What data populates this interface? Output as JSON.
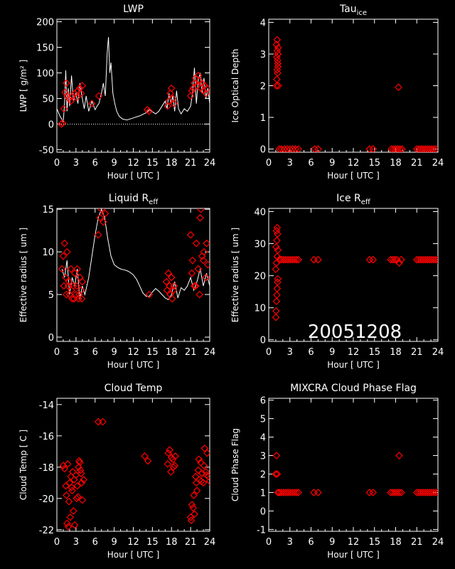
{
  "figure": {
    "date_stamp": "20051208"
  },
  "chart_data": [
    {
      "id": "lwp",
      "type": "line",
      "title": "LWP",
      "title_sub": "",
      "xlabel": "Hour [ UTC ]",
      "ylabel": "LWP [ g/m² ]",
      "xlim": [
        0,
        24
      ],
      "ylim": [
        -55,
        205
      ],
      "xticks": [
        0,
        3,
        6,
        9,
        12,
        15,
        18,
        21,
        24
      ],
      "yticks": [
        -50,
        0,
        50,
        100,
        150,
        200
      ],
      "reference_line": 0,
      "line": {
        "x": [
          0,
          0.5,
          1.0,
          1.2,
          1.4,
          1.6,
          1.8,
          2.0,
          2.3,
          2.6,
          3.0,
          3.3,
          3.6,
          4.0,
          4.3,
          4.6,
          5.0,
          5.5,
          6.0,
          6.3,
          6.6,
          7.0,
          7.3,
          7.6,
          7.9,
          8.1,
          8.3,
          8.5,
          8.8,
          9.1,
          9.4,
          9.8,
          10.3,
          11.0,
          12.0,
          13.0,
          14.0,
          14.5,
          15.0,
          15.5,
          16.0,
          16.5,
          17.0,
          17.3,
          17.6,
          17.9,
          18.2,
          18.5,
          18.8,
          19.1,
          19.5,
          20.0,
          20.5,
          21.0,
          21.3,
          21.6,
          21.9,
          22.2,
          22.5,
          22.8,
          23.1,
          23.4,
          23.7,
          24.0
        ],
        "y": [
          30,
          15,
          5,
          40,
          105,
          25,
          70,
          35,
          95,
          45,
          60,
          40,
          80,
          50,
          30,
          55,
          25,
          45,
          28,
          35,
          40,
          60,
          80,
          55,
          140,
          170,
          100,
          120,
          60,
          40,
          25,
          15,
          10,
          8,
          12,
          16,
          22,
          28,
          24,
          20,
          25,
          35,
          45,
          30,
          60,
          40,
          55,
          25,
          65,
          30,
          20,
          30,
          25,
          35,
          60,
          110,
          40,
          85,
          100,
          60,
          90,
          50,
          70,
          40
        ]
      },
      "markers": {
        "shape": "diamond",
        "x": [
          0.7,
          0.9,
          1.1,
          1.3,
          1.5,
          1.6,
          1.9,
          2.2,
          2.5,
          2.8,
          3.1,
          3.3,
          3.6,
          3.8,
          4.0,
          5.5,
          6.6,
          14.2,
          14.5,
          17.4,
          17.6,
          17.8,
          18.0,
          18.2,
          18.4,
          21.0,
          21.2,
          21.4,
          21.6,
          21.8,
          22.0,
          22.2,
          22.4,
          22.6,
          22.8,
          23.0,
          23.2,
          23.4,
          23.6
        ],
        "y": [
          0,
          2,
          30,
          62,
          80,
          55,
          50,
          45,
          55,
          60,
          52,
          65,
          70,
          60,
          75,
          40,
          55,
          28,
          25,
          35,
          45,
          60,
          70,
          50,
          40,
          55,
          65,
          70,
          80,
          90,
          75,
          95,
          85,
          70,
          80,
          65,
          75,
          60,
          70
        ]
      }
    },
    {
      "id": "tau-ice",
      "type": "scatter",
      "title": "Tau",
      "title_sub": "ice",
      "xlabel": "Hour [ UTC ]",
      "ylabel": "Ice Optical Depth",
      "xlim": [
        0,
        24
      ],
      "ylim": [
        -0.1,
        4.1
      ],
      "xticks": [
        0,
        3,
        6,
        9,
        12,
        15,
        18,
        21,
        24
      ],
      "yticks": [
        0,
        1,
        2,
        3,
        4
      ],
      "markers": {
        "shape": "diamond",
        "x": [
          1.1,
          1.15,
          1.2,
          1.25,
          1.3,
          1.35,
          1.1,
          1.2,
          1.3,
          1.15,
          1.25,
          1.35,
          1.2,
          1.3,
          1.5,
          1.8,
          2.2,
          2.6,
          3.0,
          3.4,
          3.8,
          4.2,
          6.5,
          7.0,
          14.3,
          14.8,
          17.4,
          17.7,
          18.0,
          18.3,
          18.6,
          18.9,
          21.0,
          21.3,
          21.6,
          21.9,
          22.2,
          22.5,
          22.8,
          23.1,
          23.4,
          23.7,
          18.4
        ],
        "y": [
          2.0,
          2.2,
          2.5,
          2.8,
          3.0,
          3.2,
          3.3,
          3.45,
          2.6,
          2.9,
          2.4,
          2.0,
          3.1,
          2.7,
          0,
          0,
          0,
          0,
          0,
          0,
          0,
          0,
          0,
          0,
          0,
          0,
          0,
          0,
          0,
          0,
          0,
          0,
          0,
          0,
          0,
          0,
          0,
          0,
          0,
          0,
          0,
          0,
          1.95
        ]
      }
    },
    {
      "id": "liquid-reff",
      "type": "line",
      "title": "Liquid R",
      "title_sub": "eff",
      "xlabel": "Hour [ UTC ]",
      "ylabel": "Effective radius [ um ]",
      "xlim": [
        0,
        24
      ],
      "ylim": [
        -0.5,
        15.1
      ],
      "xticks": [
        0,
        3,
        6,
        9,
        12,
        15,
        18,
        21,
        24
      ],
      "yticks": [
        0,
        5,
        10,
        15
      ],
      "line": {
        "x": [
          0.8,
          1.2,
          1.6,
          2.0,
          2.4,
          2.8,
          3.2,
          3.6,
          4.0,
          4.4,
          5.0,
          5.5,
          6.0,
          6.5,
          7.0,
          7.5,
          8.0,
          8.5,
          9.0,
          9.5,
          10.0,
          10.5,
          11.0,
          11.5,
          12.0,
          12.5,
          13.0,
          13.5,
          14.0,
          14.5,
          15.0,
          15.5,
          16.0,
          16.5,
          17.0,
          17.5,
          18.0,
          18.5,
          19.0,
          19.5,
          20.0,
          20.5,
          21.0,
          21.5,
          22.0,
          22.5,
          23.0,
          23.5,
          24.0
        ],
        "y": [
          8,
          7,
          9,
          5,
          7,
          6,
          8,
          4.5,
          6,
          5,
          7,
          9.5,
          12,
          14,
          15,
          14,
          11.5,
          9.5,
          8.5,
          8.2,
          8.0,
          7.9,
          7.8,
          7.6,
          7.3,
          6.8,
          6.0,
          5.2,
          4.8,
          4.8,
          5.3,
          5.7,
          5.4,
          5.0,
          4.6,
          4.4,
          5.0,
          6.5,
          4.6,
          5.8,
          5.5,
          6.0,
          7.0,
          5.5,
          6.5,
          8.0,
          6.0,
          7.5,
          6.0
        ]
      },
      "markers": {
        "shape": "diamond",
        "x": [
          0.8,
          1.0,
          1.2,
          1.4,
          1.6,
          1.8,
          2.0,
          2.2,
          2.4,
          2.6,
          2.8,
          3.0,
          3.2,
          3.4,
          3.6,
          3.8,
          4.0,
          1.1,
          1.5,
          1.9,
          2.3,
          2.7,
          3.1,
          3.5,
          3.9,
          6.5,
          6.8,
          7.0,
          7.3,
          7.6,
          14.5,
          17.2,
          17.5,
          17.8,
          18.1,
          18.4,
          17.3,
          17.7,
          18.0,
          18.3,
          21.0,
          21.3,
          21.6,
          21.9,
          22.2,
          22.5,
          22.8,
          23.1,
          23.4,
          23.7,
          21.2,
          21.8,
          22.4,
          23.0,
          23.5,
          22.6
        ],
        "y": [
          8,
          9.5,
          11,
          7,
          10,
          6,
          5,
          8,
          4.5,
          6,
          7.5,
          5,
          8,
          4.5,
          7,
          5.5,
          6.5,
          6,
          5,
          6.5,
          5.5,
          4.5,
          6,
          5,
          4.5,
          12,
          14,
          15,
          13.5,
          14.5,
          5,
          6.5,
          7.5,
          5,
          4.5,
          6,
          5.5,
          6,
          7,
          5.5,
          12,
          9,
          6,
          11,
          8,
          14,
          9.5,
          10,
          7,
          8.5,
          7.5,
          6,
          5,
          9,
          11,
          15
        ]
      }
    },
    {
      "id": "ice-reff",
      "type": "scatter",
      "title": "Ice R",
      "title_sub": "eff",
      "xlabel": "Hour [ UTC ]",
      "ylabel": "Effective radius [ um ]",
      "xlim": [
        0,
        24
      ],
      "ylim": [
        -0.5,
        41
      ],
      "xticks": [
        0,
        3,
        6,
        9,
        12,
        15,
        18,
        21,
        24
      ],
      "yticks": [
        0,
        10,
        20,
        30,
        40
      ],
      "markers": {
        "shape": "diamond",
        "x": [
          1.0,
          1.05,
          1.1,
          1.15,
          1.2,
          1.25,
          1.3,
          1.0,
          1.1,
          1.2,
          1.3,
          1.05,
          1.15,
          1.25,
          1.1,
          1.2,
          1.5,
          1.8,
          2.1,
          2.4,
          2.7,
          3.0,
          3.3,
          3.6,
          3.9,
          4.2,
          6.4,
          7.0,
          14.3,
          14.8,
          17.3,
          17.6,
          17.9,
          18.2,
          18.5,
          18.8,
          21.0,
          21.3,
          21.6,
          21.9,
          22.2,
          22.5,
          22.8,
          23.1,
          23.4,
          23.7,
          24.0
        ],
        "y": [
          7,
          9,
          12,
          14,
          16,
          18,
          19,
          22,
          24,
          26,
          28,
          29,
          31,
          33,
          34,
          35,
          25,
          25,
          25,
          25,
          25,
          25,
          25,
          25,
          25,
          25,
          25,
          25,
          25,
          25,
          25,
          25,
          25,
          25,
          24,
          25,
          25,
          25,
          25,
          25,
          25,
          25,
          25,
          25,
          25,
          25,
          25
        ]
      }
    },
    {
      "id": "cloud-temp",
      "type": "scatter",
      "title": "Cloud Temp",
      "title_sub": "",
      "xlabel": "Hour [ UTC ]",
      "ylabel": "Cloud Temp [ C ]",
      "xlim": [
        0,
        24
      ],
      "ylim": [
        -22.1,
        -13.6
      ],
      "xticks": [
        0,
        3,
        6,
        9,
        12,
        15,
        18,
        21,
        24
      ],
      "yticks": [
        -22,
        -20,
        -18,
        -16,
        -14
      ],
      "markers": {
        "shape": "diamond",
        "x": [
          1.0,
          1.2,
          1.4,
          1.6,
          1.8,
          2.0,
          2.2,
          2.4,
          2.6,
          2.8,
          3.0,
          3.2,
          3.4,
          3.6,
          3.8,
          4.0,
          4.2,
          1.5,
          1.9,
          2.3,
          2.7,
          3.1,
          3.5,
          3.9,
          1.7,
          2.1,
          2.5,
          3.3,
          3.7,
          6.5,
          7.2,
          13.8,
          14.3,
          17.4,
          17.7,
          18.0,
          18.3,
          18.6,
          17.5,
          17.9,
          18.2,
          18.5,
          21.0,
          21.2,
          21.4,
          21.6,
          21.8,
          22.0,
          22.2,
          22.4,
          22.6,
          22.8,
          23.0,
          23.2,
          23.4,
          23.6,
          23.8,
          24.0,
          21.1,
          21.5,
          21.9,
          22.3,
          22.7,
          23.1,
          23.5
        ],
        "y": [
          -17.9,
          -18.1,
          -19.2,
          -21.6,
          -21.8,
          -19.0,
          -18.6,
          -19.5,
          -20.8,
          -21.7,
          -18.5,
          -19.2,
          -18.0,
          -17.7,
          -18.4,
          -20.1,
          -18.8,
          -19.8,
          -20.2,
          -19.3,
          -18.8,
          -20.0,
          -17.6,
          -19.0,
          -17.8,
          -21.2,
          -18.3,
          -19.9,
          -18.2,
          -15.1,
          -15.1,
          -17.3,
          -17.6,
          -17.8,
          -16.9,
          -17.4,
          -18.0,
          -17.3,
          -17.1,
          -18.3,
          -17.5,
          -17.9,
          -21.2,
          -20.4,
          -20.6,
          -21.0,
          -18.6,
          -19.5,
          -18.2,
          -18.8,
          -17.7,
          -18.4,
          -19.0,
          -16.8,
          -18.3,
          -17.1,
          -18.6,
          -18.9,
          -21.4,
          -19.8,
          -19.0,
          -17.5,
          -18.9,
          -17.9,
          -18.5
        ]
      }
    },
    {
      "id": "phase-flag",
      "type": "scatter",
      "title": "MIXCRA Cloud Phase Flag",
      "title_sub": "",
      "xlabel": "Hour [ UTC ]",
      "ylabel": "Cloud Phase Flag",
      "xlim": [
        0,
        24
      ],
      "ylim": [
        -1.1,
        6.1
      ],
      "xticks": [
        0,
        3,
        6,
        9,
        12,
        15,
        18,
        21,
        24
      ],
      "yticks": [
        -1,
        0,
        1,
        2,
        3,
        4,
        5,
        6
      ],
      "markers": {
        "shape": "diamond",
        "x": [
          1.1,
          1.2,
          1.0,
          1.3,
          1.5,
          1.8,
          2.1,
          2.4,
          2.7,
          3.0,
          3.3,
          3.6,
          3.9,
          4.2,
          6.4,
          7.0,
          14.3,
          14.8,
          17.3,
          17.6,
          17.9,
          18.2,
          18.5,
          18.8,
          21.0,
          21.3,
          21.6,
          21.9,
          22.2,
          22.5,
          22.8,
          23.1,
          23.4,
          23.7,
          24.0,
          18.5
        ],
        "y": [
          3,
          2,
          2,
          1,
          1,
          1,
          1,
          1,
          1,
          1,
          1,
          1,
          1,
          1,
          1,
          1,
          1,
          1,
          1,
          1,
          1,
          1,
          1,
          1,
          1,
          1,
          1,
          1,
          1,
          1,
          1,
          1,
          1,
          1,
          1,
          3
        ]
      }
    }
  ]
}
